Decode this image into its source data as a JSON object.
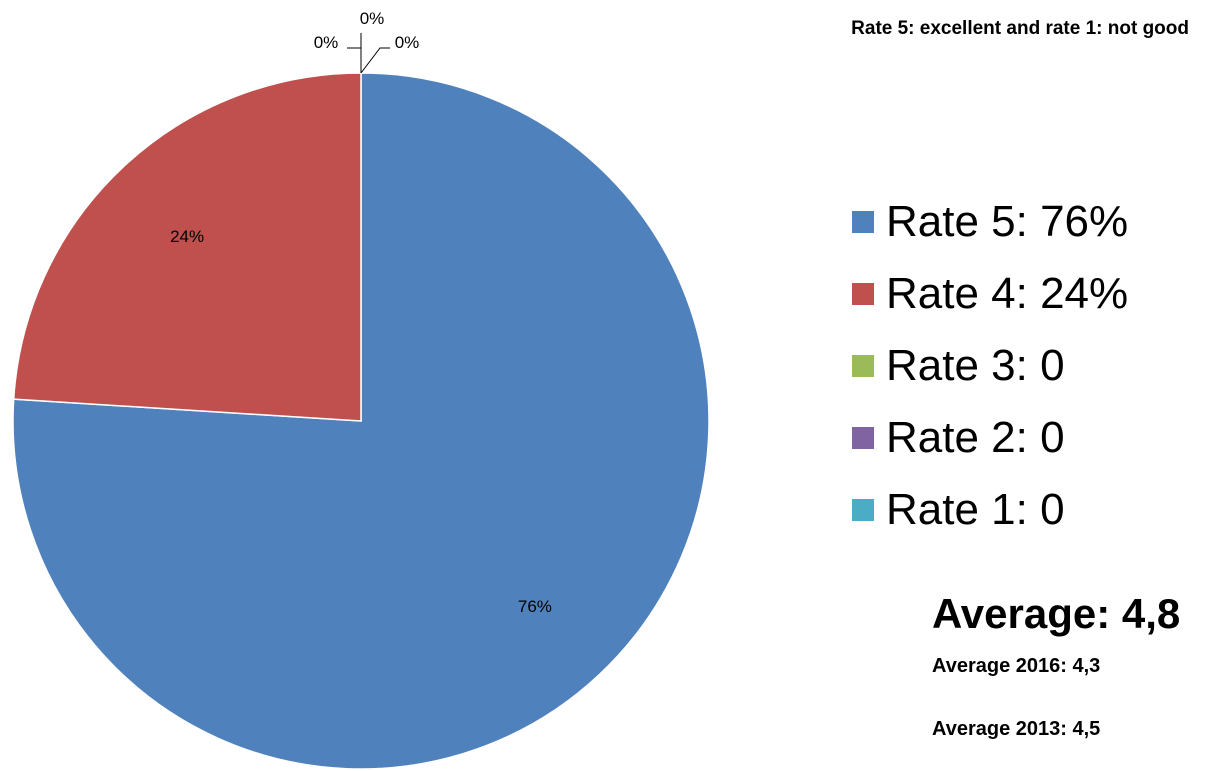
{
  "chart_data": {
    "type": "pie",
    "note": "Rate 5: excellent and rate 1: not good",
    "series": [
      {
        "label": "Rate 5: 76%",
        "value": 76,
        "data_label": "76%",
        "color": "#4F81BD"
      },
      {
        "label": "Rate 4: 24%",
        "value": 24,
        "data_label": "24%",
        "color": "#C0504D"
      },
      {
        "label": "Rate 3: 0",
        "value": 0,
        "data_label": "0%",
        "color": "#9BBB59"
      },
      {
        "label": "Rate 2: 0",
        "value": 0,
        "data_label": "0%",
        "color": "#8064A2"
      },
      {
        "label": "Rate 1: 0",
        "value": 0,
        "data_label": "0%",
        "color": "#4BACC6"
      }
    ],
    "legend_position": "right"
  },
  "averages": {
    "main": "Average: 4,8",
    "y2016": "Average 2016: 4,3",
    "y2013": "Average 2013: 4,5"
  }
}
